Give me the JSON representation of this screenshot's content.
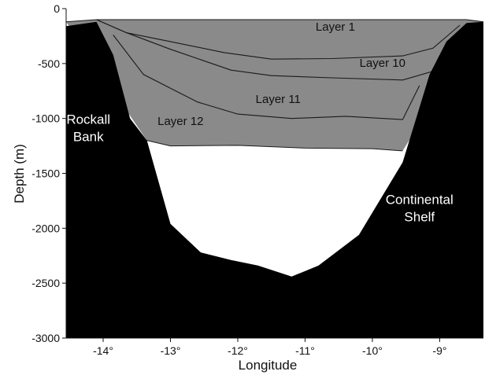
{
  "chart_data": {
    "type": "area",
    "xlabel": "Longitude",
    "ylabel": "Depth (m)",
    "xlim": [
      -14.55,
      -8.35
    ],
    "ylim": [
      -3000,
      0
    ],
    "x_ticks": [
      -14,
      -13,
      -12,
      -11,
      -10,
      -9
    ],
    "x_tick_labels": [
      "-14°",
      "-13°",
      "-12°",
      "-11°",
      "-10°",
      "-9°"
    ],
    "y_ticks": [
      0,
      -500,
      -1000,
      -1500,
      -2000,
      -2500,
      -3000
    ],
    "y_tick_labels": [
      "0",
      "-500",
      "-1000",
      "-1500",
      "-2000",
      "-2500",
      "-3000"
    ],
    "grid": false,
    "colors": {
      "seabed": "#000000",
      "layers": "#8a8a8a",
      "deep_water": "#ffffff",
      "boundary": "#1a1a1a"
    },
    "seabed": {
      "x": [
        -14.55,
        -14.1,
        -13.85,
        -13.6,
        -13.35,
        -13.0,
        -12.55,
        -12.1,
        -11.7,
        -11.2,
        -10.8,
        -10.2,
        -9.55,
        -9.35,
        -9.15,
        -8.9,
        -8.6,
        -8.35
      ],
      "y": [
        -160,
        -120,
        -420,
        -1000,
        -1200,
        -1960,
        -2220,
        -2290,
        -2340,
        -2440,
        -2340,
        -2060,
        -1400,
        -1000,
        -600,
        -300,
        -130,
        -120
      ]
    },
    "surface": {
      "x": [
        -14.55,
        -14.1,
        -8.6,
        -8.35
      ],
      "y": [
        -120,
        -100,
        -100,
        -120
      ]
    },
    "layer_bottom": {
      "x": [
        -13.35,
        -13.0,
        -12.0,
        -11.0,
        -10.0,
        -9.55
      ],
      "y": [
        -1200,
        -1250,
        -1245,
        -1270,
        -1275,
        -1295
      ]
    },
    "interfaces": [
      {
        "x": [
          -14.1,
          -13.65,
          -13.0,
          -12.2,
          -11.5,
          -10.6,
          -9.55,
          -9.1,
          -8.7
        ],
        "y": [
          -100,
          -220,
          -300,
          -400,
          -460,
          -455,
          -430,
          -360,
          -150
        ]
      },
      {
        "x": [
          -14.1,
          -13.65,
          -13.0,
          -12.1,
          -11.5,
          -10.6,
          -9.55,
          -9.1,
          -8.7
        ],
        "y": [
          -100,
          -220,
          -370,
          -560,
          -610,
          -630,
          -650,
          -570,
          -200
        ]
      },
      {
        "x": [
          -13.85,
          -13.4,
          -12.6,
          -12.0,
          -11.2,
          -10.4,
          -9.55,
          -9.3
        ],
        "y": [
          -240,
          -600,
          -850,
          -960,
          -1000,
          -980,
          -1010,
          -700
        ]
      }
    ],
    "labels": [
      {
        "text": "Layer 1",
        "x": -10.55,
        "y": -200
      },
      {
        "text": "Layer 10",
        "x": -9.85,
        "y": -530
      },
      {
        "text": "Layer 11",
        "x": -11.4,
        "y": -860
      },
      {
        "text": "Layer 12",
        "x": -12.85,
        "y": -1060
      }
    ],
    "regions": [
      {
        "lines": [
          "Rockall",
          "Bank"
        ],
        "x": -14.22,
        "y": -1050
      },
      {
        "lines": [
          "Continental",
          "Shelf"
        ],
        "x": -9.3,
        "y": -1780
      }
    ]
  }
}
